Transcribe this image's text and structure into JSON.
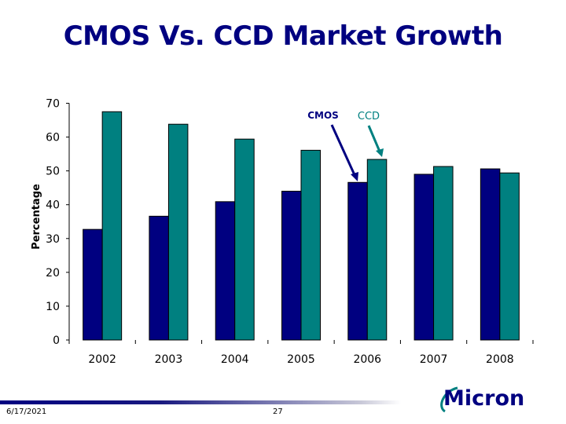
{
  "slide": {
    "title": "CMOS Vs. CCD Market Growth",
    "date": "6/17/2021",
    "page_number": "27",
    "logo_text": "Micron"
  },
  "chart_data": {
    "type": "bar",
    "title": "",
    "xlabel": "",
    "ylabel": "Percentage",
    "ylim": [
      0,
      70
    ],
    "yticks": [
      0,
      10,
      20,
      30,
      40,
      50,
      60,
      70
    ],
    "grid": false,
    "legend": "annotation arrows",
    "categories": [
      "2002",
      "2003",
      "2004",
      "2005",
      "2006",
      "2007",
      "2008"
    ],
    "series": [
      {
        "name": "CMOS",
        "color": "#000080",
        "values": [
          32.7,
          36.6,
          40.9,
          44.0,
          46.6,
          49.0,
          50.6
        ]
      },
      {
        "name": "CCD",
        "color": "#008080",
        "values": [
          67.5,
          63.8,
          59.4,
          56.1,
          53.4,
          51.3,
          49.4
        ]
      }
    ]
  }
}
